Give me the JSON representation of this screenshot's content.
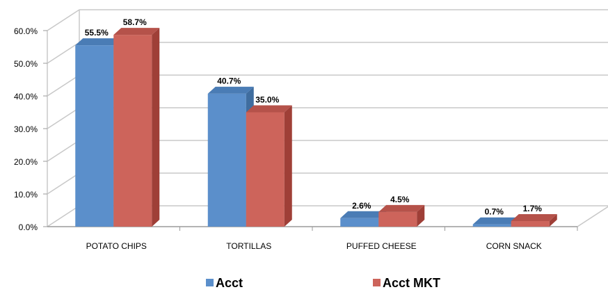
{
  "chart_data": {
    "type": "bar",
    "categories": [
      "POTATO CHIPS",
      "TORTILLAS",
      "PUFFED CHEESE",
      "CORN SNACK"
    ],
    "series": [
      {
        "name": "Acct",
        "values": [
          55.5,
          40.7,
          2.6,
          0.7
        ],
        "color": "#5b8fcb",
        "side_color": "#3f6d9f",
        "top_color": "#4a7cb5"
      },
      {
        "name": "Acct MKT",
        "values": [
          58.7,
          35.0,
          4.5,
          1.7
        ],
        "color": "#cd645b",
        "side_color": "#9f3f37",
        "top_color": "#b5524a"
      }
    ],
    "data_labels": [
      [
        "55.5%",
        "40.7%",
        "2.6%",
        "0.7%"
      ],
      [
        "58.7%",
        "35.0%",
        "4.5%",
        "1.7%"
      ]
    ],
    "y_ticks": [
      "0.0%",
      "10.0%",
      "20.0%",
      "30.0%",
      "40.0%",
      "50.0%",
      "60.0%"
    ],
    "ylim": [
      0,
      60
    ],
    "grid": true,
    "legend": "bottom",
    "three_d": true
  }
}
